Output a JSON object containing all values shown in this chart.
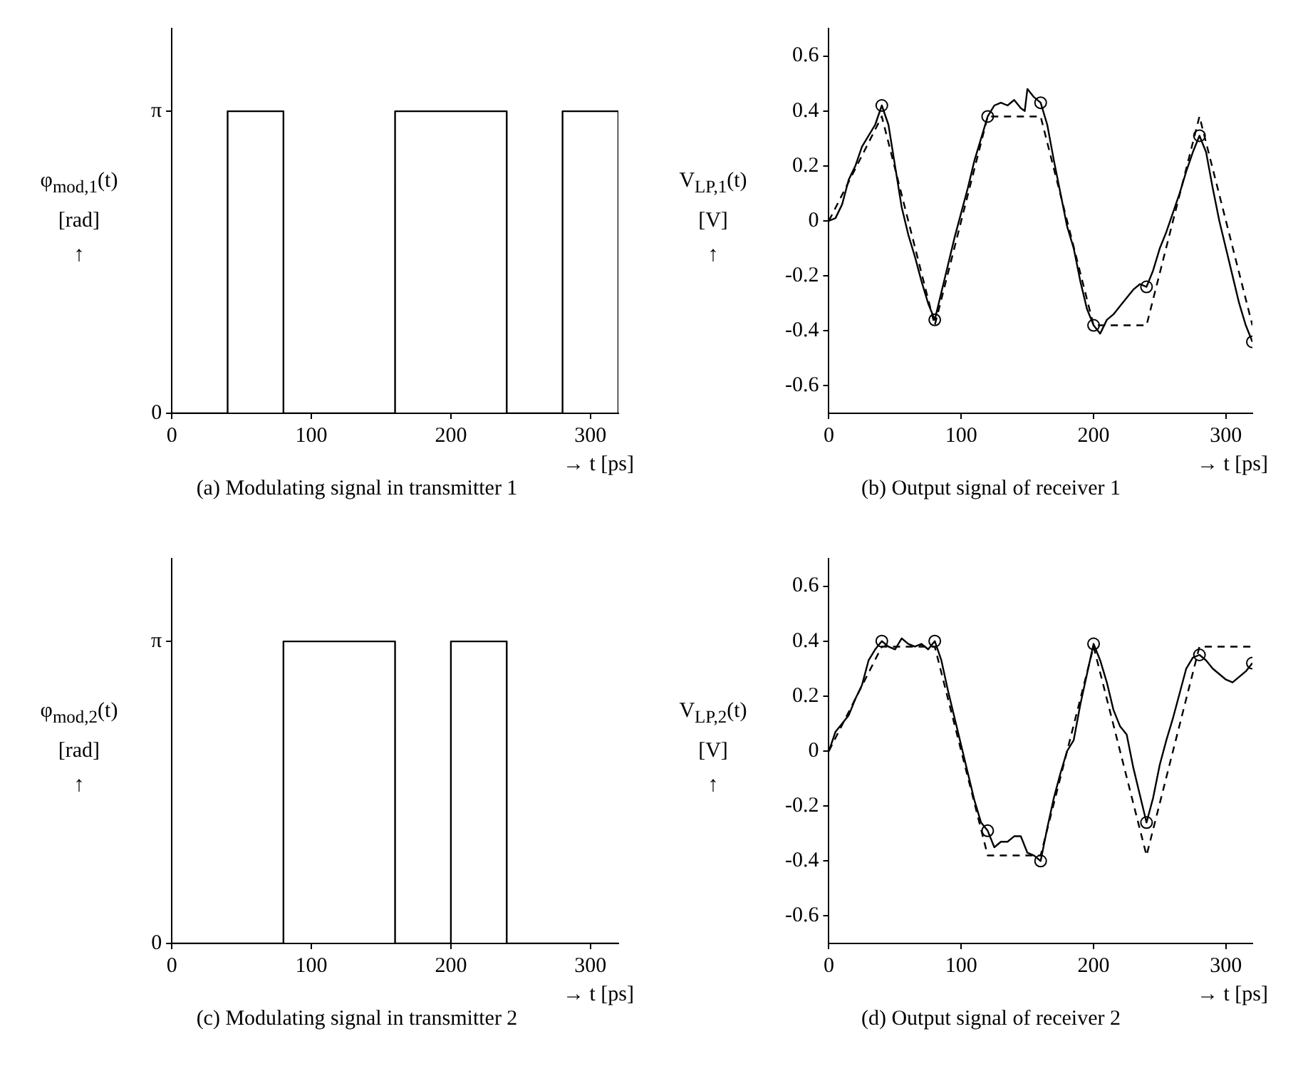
{
  "chart_data": [
    {
      "type": "step",
      "title": "(a) Modulating signal in transmitter 1",
      "xlabel": "→ t [ps]",
      "ylabel": "φ$_{mod,1}$(t)\n[rad]\n↑",
      "xlim": [
        0,
        320
      ],
      "xticks": [
        0,
        100,
        200,
        300
      ],
      "ylim": [
        0,
        4
      ],
      "yticks": [
        0,
        {
          "value": 3.14,
          "label": "π"
        }
      ],
      "series": [
        {
          "color": "#000000",
          "x": [
            0,
            40,
            80,
            160,
            240,
            280,
            320
          ],
          "values": [
            0,
            3.14,
            0,
            3.14,
            0,
            3.14,
            0
          ]
        }
      ]
    },
    {
      "type": "line",
      "title": "(b) Output signal of receiver 1",
      "xlabel": "→ t [ps]",
      "ylabel": "V$_{LP,1}$(t)\n[V]\n↑",
      "xlim": [
        0,
        320
      ],
      "xticks": [
        0,
        100,
        200,
        300
      ],
      "ylim": [
        -0.7,
        0.7
      ],
      "yticks": [
        -0.6,
        -0.4,
        -0.2,
        0,
        0.2,
        0.4,
        0.6
      ],
      "series": [
        {
          "type": "line",
          "color": "#000000",
          "marker": "none",
          "line_style": "solid",
          "x": [
            0,
            5,
            10,
            15,
            20,
            25,
            30,
            35,
            40,
            45,
            50,
            55,
            60,
            65,
            70,
            75,
            80,
            85,
            90,
            95,
            100,
            105,
            110,
            115,
            120,
            125,
            130,
            135,
            140,
            145,
            148,
            150,
            155,
            160,
            165,
            170,
            175,
            180,
            185,
            190,
            195,
            200,
            205,
            210,
            215,
            220,
            225,
            230,
            235,
            240,
            245,
            250,
            255,
            260,
            265,
            270,
            275,
            280,
            285,
            290,
            295,
            300,
            305,
            310,
            315,
            320
          ],
          "values": [
            0,
            0.01,
            0.06,
            0.15,
            0.2,
            0.27,
            0.31,
            0.35,
            0.42,
            0.35,
            0.2,
            0.05,
            -0.05,
            -0.13,
            -0.22,
            -0.3,
            -0.36,
            -0.26,
            -0.16,
            -0.06,
            0.03,
            0.12,
            0.22,
            0.3,
            0.38,
            0.42,
            0.43,
            0.42,
            0.44,
            0.41,
            0.4,
            0.48,
            0.45,
            0.43,
            0.35,
            0.22,
            0.1,
            -0.02,
            -0.1,
            -0.22,
            -0.32,
            -0.38,
            -0.41,
            -0.36,
            -0.34,
            -0.31,
            -0.28,
            -0.25,
            -0.23,
            -0.24,
            -0.18,
            -0.1,
            -0.04,
            0.03,
            0.1,
            0.18,
            0.25,
            0.31,
            0.25,
            0.12,
            0,
            -0.1,
            -0.2,
            -0.3,
            -0.38,
            -0.44
          ]
        },
        {
          "type": "line",
          "color": "#000000",
          "marker": "none",
          "line_style": "dashed",
          "x": [
            0,
            40,
            80,
            120,
            160,
            200,
            240,
            280,
            320
          ],
          "values": [
            0,
            0.38,
            -0.38,
            0.38,
            0.38,
            -0.38,
            -0.38,
            0.38,
            -0.38
          ]
        },
        {
          "type": "scatter",
          "color": "#000000",
          "marker": "circle",
          "x": [
            40,
            80,
            120,
            160,
            200,
            240,
            280,
            320
          ],
          "values": [
            0.42,
            -0.36,
            0.38,
            0.43,
            -0.38,
            -0.24,
            0.31,
            -0.44
          ]
        }
      ]
    },
    {
      "type": "step",
      "title": "(c) Modulating signal in transmitter 2",
      "xlabel": "→ t [ps]",
      "ylabel": "φ$_{mod,2}$(t)\n[rad]\n↑",
      "xlim": [
        0,
        320
      ],
      "xticks": [
        0,
        100,
        200,
        300
      ],
      "ylim": [
        0,
        4
      ],
      "yticks": [
        0,
        {
          "value": 3.14,
          "label": "π"
        }
      ],
      "series": [
        {
          "color": "#000000",
          "x": [
            0,
            80,
            160,
            200,
            240,
            320
          ],
          "values": [
            0,
            3.14,
            0,
            3.14,
            0,
            0
          ]
        }
      ]
    },
    {
      "type": "line",
      "title": "(d) Output signal of receiver 2",
      "xlabel": "→ t [ps]",
      "ylabel": "V$_{LP,2}$(t)\n[V]\n↑",
      "xlim": [
        0,
        320
      ],
      "xticks": [
        0,
        100,
        200,
        300
      ],
      "ylim": [
        -0.7,
        0.7
      ],
      "yticks": [
        -0.6,
        -0.4,
        -0.2,
        0,
        0.2,
        0.4,
        0.6
      ],
      "series": [
        {
          "type": "line",
          "color": "#000000",
          "marker": "none",
          "line_style": "solid",
          "x": [
            0,
            5,
            10,
            15,
            20,
            25,
            30,
            35,
            40,
            45,
            50,
            55,
            60,
            65,
            70,
            75,
            80,
            85,
            90,
            95,
            100,
            105,
            110,
            115,
            120,
            125,
            130,
            135,
            140,
            145,
            150,
            155,
            160,
            165,
            170,
            175,
            180,
            185,
            190,
            195,
            200,
            205,
            210,
            215,
            220,
            225,
            230,
            235,
            240,
            245,
            250,
            255,
            260,
            265,
            270,
            275,
            280,
            285,
            290,
            295,
            300,
            305,
            310,
            315,
            320
          ],
          "values": [
            0,
            0.07,
            0.1,
            0.13,
            0.19,
            0.24,
            0.33,
            0.37,
            0.4,
            0.38,
            0.37,
            0.41,
            0.39,
            0.38,
            0.39,
            0.37,
            0.4,
            0.33,
            0.22,
            0.12,
            0.02,
            -0.08,
            -0.18,
            -0.26,
            -0.29,
            -0.35,
            -0.33,
            -0.33,
            -0.31,
            -0.31,
            -0.37,
            -0.38,
            -0.4,
            -0.28,
            -0.17,
            -0.08,
            0,
            0.04,
            0.17,
            0.28,
            0.39,
            0.33,
            0.25,
            0.15,
            0.09,
            0.06,
            -0.06,
            -0.16,
            -0.26,
            -0.17,
            -0.05,
            0.04,
            0.12,
            0.21,
            0.3,
            0.34,
            0.35,
            0.33,
            0.3,
            0.28,
            0.26,
            0.25,
            0.27,
            0.29,
            0.32
          ]
        },
        {
          "type": "line",
          "color": "#000000",
          "marker": "none",
          "line_style": "dashed",
          "x": [
            0,
            40,
            80,
            120,
            160,
            200,
            240,
            280,
            320
          ],
          "values": [
            0,
            0.38,
            0.38,
            -0.38,
            -0.38,
            0.38,
            -0.38,
            0.38,
            0.38
          ]
        },
        {
          "type": "scatter",
          "color": "#000000",
          "marker": "circle",
          "x": [
            40,
            80,
            120,
            160,
            200,
            240,
            280,
            320
          ],
          "values": [
            0.4,
            0.4,
            -0.29,
            -0.4,
            0.39,
            -0.26,
            0.35,
            0.32
          ]
        }
      ]
    }
  ]
}
